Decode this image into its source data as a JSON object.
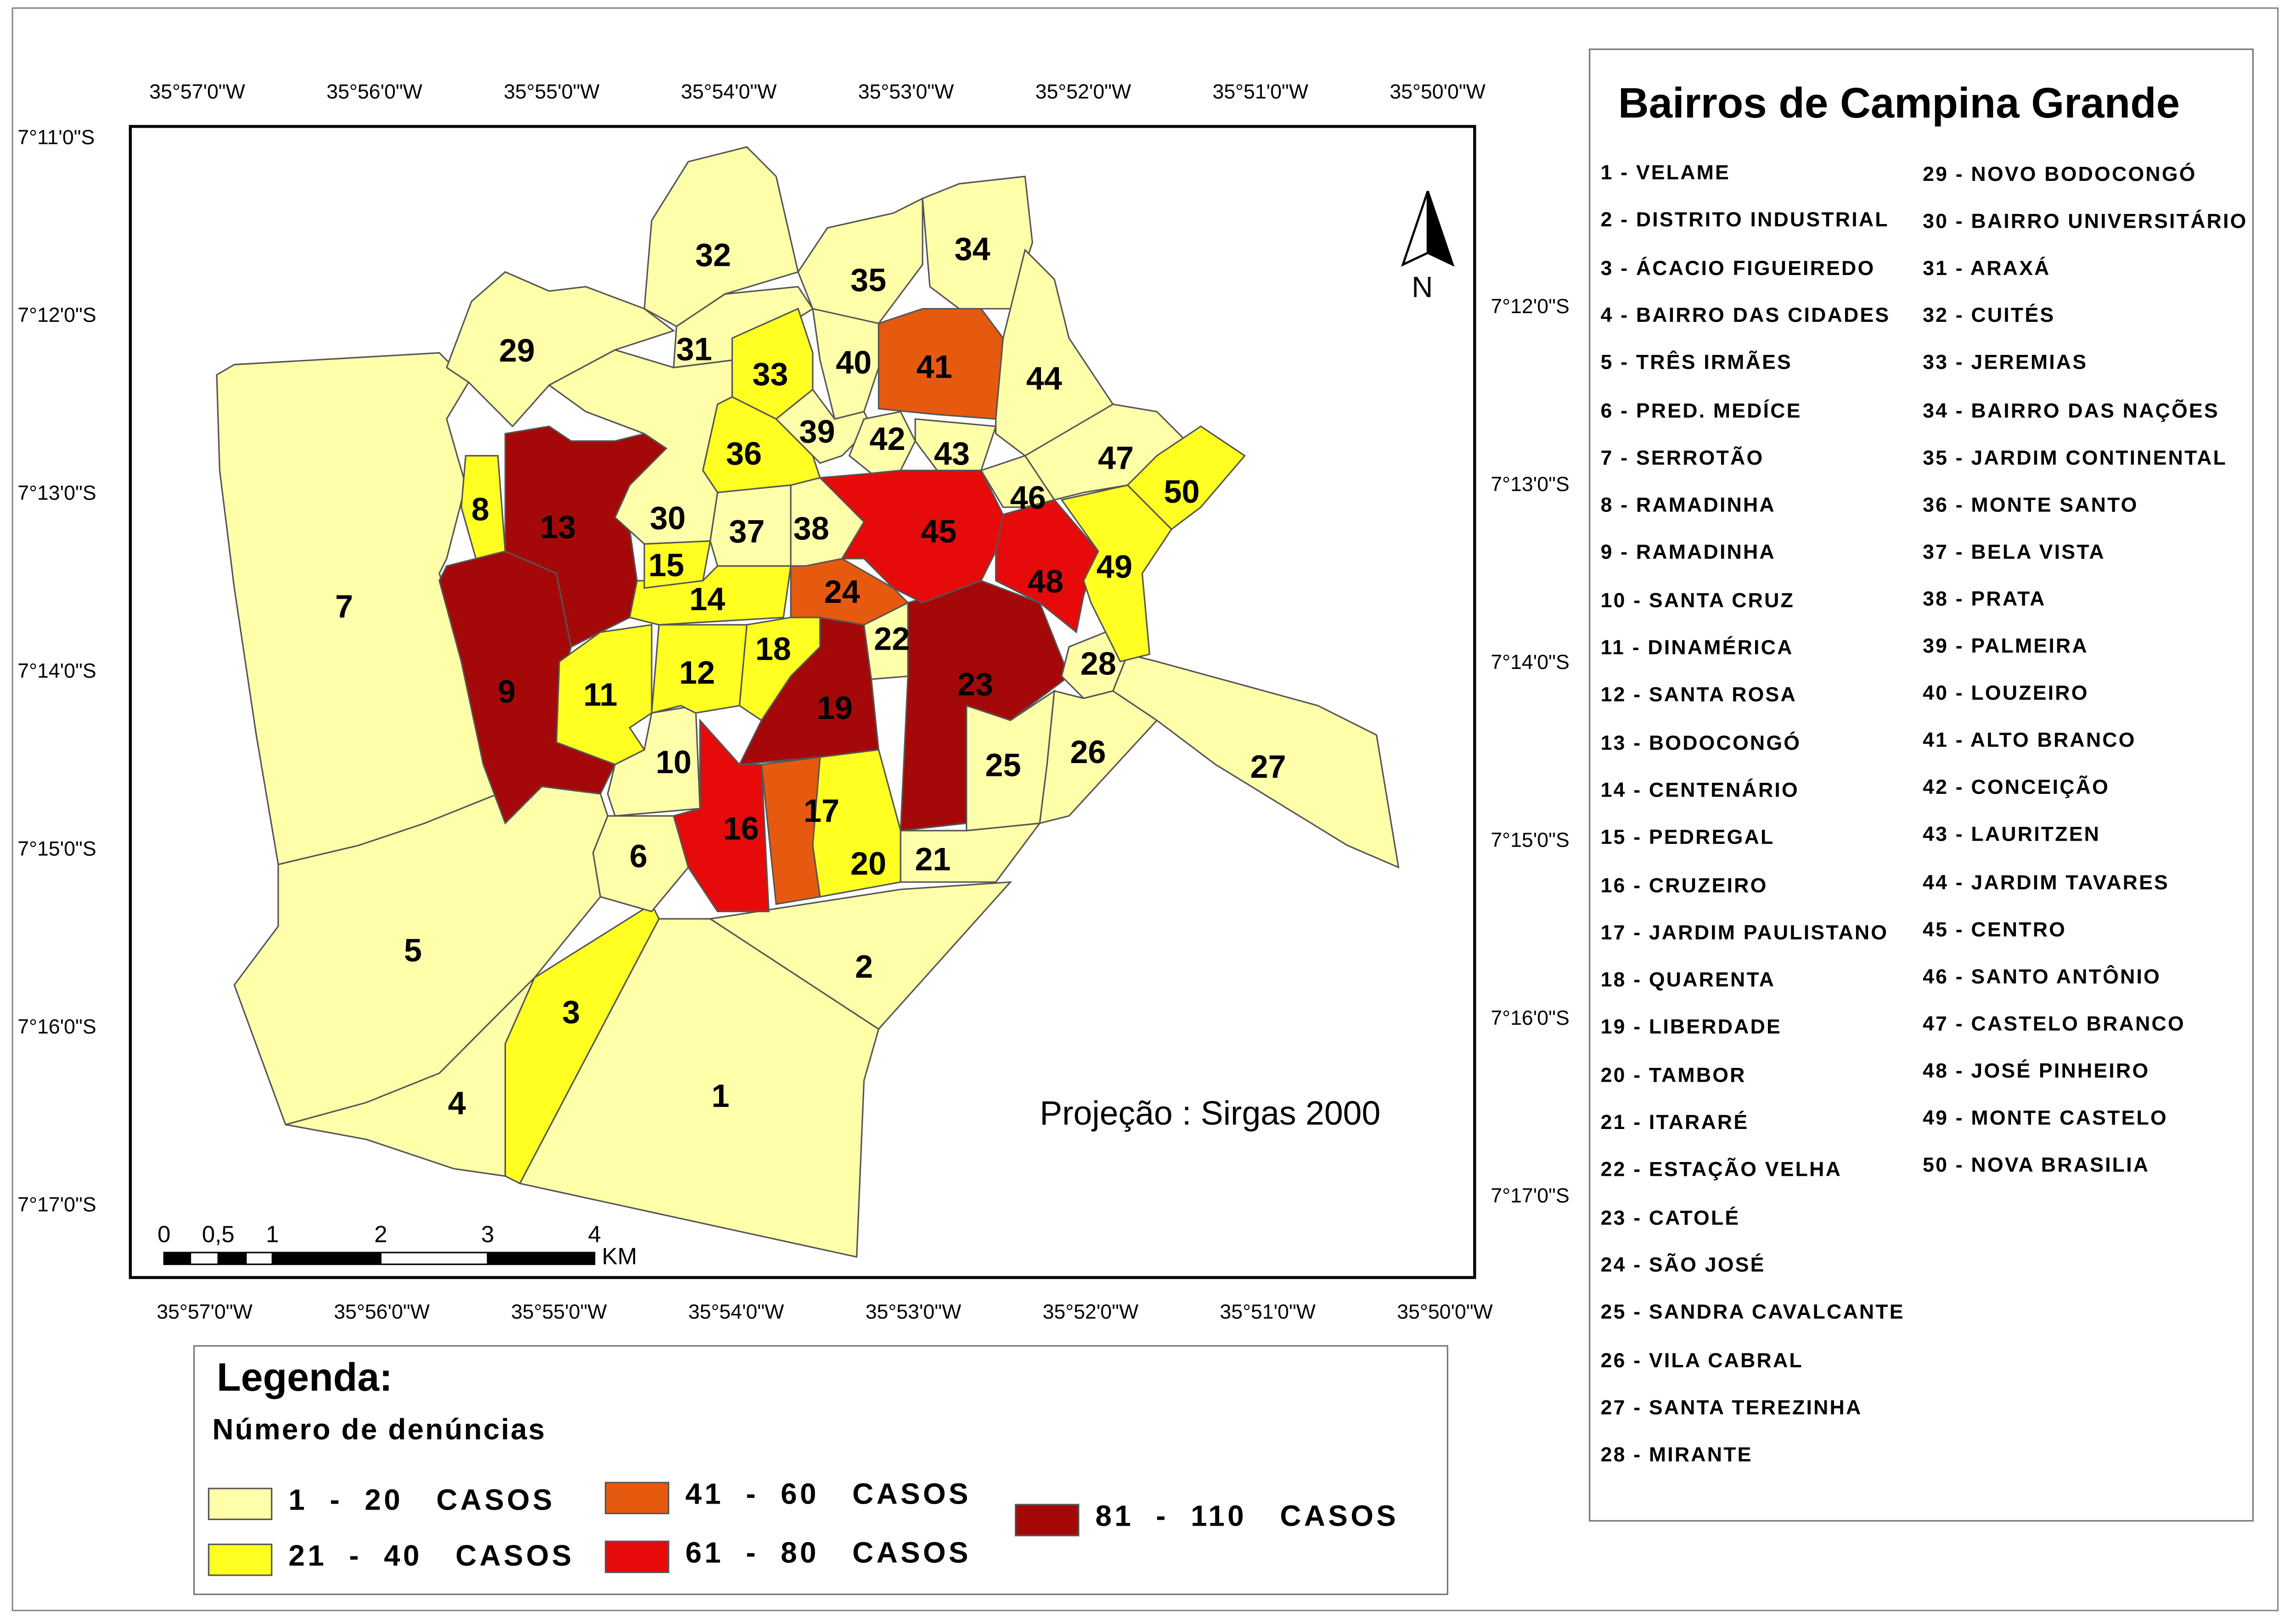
{
  "title": "Bairros de Campina Grande",
  "projection": "Projeção : Sirgas 2000",
  "north_label": "N",
  "lon_labels": [
    "35°57'0\"W",
    "35°56'0\"W",
    "35°55'0\"W",
    "35°54'0\"W",
    "35°53'0\"W",
    "35°52'0\"W",
    "35°51'0\"W",
    "35°50'0\"W"
  ],
  "lat_labels_left": [
    "7°11'0\"S",
    "7°12'0\"S",
    "7°13'0\"S",
    "7°14'0\"S",
    "7°15'0\"S",
    "7°16'0\"S",
    "7°17'0\"S"
  ],
  "lat_labels_right": [
    "7°12'0\"S",
    "7°13'0\"S",
    "7°14'0\"S",
    "7°15'0\"S",
    "7°16'0\"S",
    "7°17'0\"S"
  ],
  "scale_bar": {
    "labels": [
      "0",
      "0,5",
      "1",
      "2",
      "3",
      "4"
    ],
    "unit": "KM"
  },
  "legend": {
    "title": "Legenda:",
    "subtitle": "Número de denúncias",
    "classes": [
      {
        "label": "1  -  20   CASOS",
        "color": "#FFFFAA"
      },
      {
        "label": "21  -  40   CASOS",
        "color": "#FFFF22"
      },
      {
        "label": "41  -  60   CASOS",
        "color": "#E65A10"
      },
      {
        "label": "61  -  80   CASOS",
        "color": "#E60A0A"
      },
      {
        "label": "81  -  110   CASOS",
        "color": "#A50808"
      }
    ]
  },
  "neighborhoods": [
    {
      "id": "1",
      "name": "VELAME",
      "class": 0
    },
    {
      "id": "2",
      "name": "DISTRITO INDUSTRIAL",
      "class": 0
    },
    {
      "id": "3",
      "name": "ÁCACIO FIGUEIREDO",
      "class": 1
    },
    {
      "id": "4",
      "name": "BAIRRO DAS CIDADES",
      "class": 0
    },
    {
      "id": "5",
      "name": "TRÊS IRMÃES",
      "class": 0
    },
    {
      "id": "6",
      "name": "PRED. MEDÍCE",
      "class": 0
    },
    {
      "id": "7",
      "name": "SERROTÃO",
      "class": 0
    },
    {
      "id": "8",
      "name": "RAMADINHA",
      "class": 1
    },
    {
      "id": "9",
      "name": "RAMADINHA",
      "class": 4
    },
    {
      "id": "10",
      "name": "SANTA CRUZ",
      "class": 0
    },
    {
      "id": "11",
      "name": "DINAMÉRICA",
      "class": 1
    },
    {
      "id": "12",
      "name": "SANTA ROSA",
      "class": 1
    },
    {
      "id": "13",
      "name": "BODOCONGÓ",
      "class": 4
    },
    {
      "id": "14",
      "name": "CENTENÁRIO",
      "class": 1
    },
    {
      "id": "15",
      "name": "PEDREGAL",
      "class": 1
    },
    {
      "id": "16",
      "name": "CRUZEIRO",
      "class": 3
    },
    {
      "id": "17",
      "name": "JARDIM PAULISTANO",
      "class": 2
    },
    {
      "id": "18",
      "name": "QUARENTA",
      "class": 1
    },
    {
      "id": "19",
      "name": "LIBERDADE",
      "class": 4
    },
    {
      "id": "20",
      "name": "TAMBOR",
      "class": 1
    },
    {
      "id": "21",
      "name": "ITARARÉ",
      "class": 0
    },
    {
      "id": "22",
      "name": "ESTAÇÃO VELHA",
      "class": 0
    },
    {
      "id": "23",
      "name": "CATOLÉ",
      "class": 4
    },
    {
      "id": "24",
      "name": "SÃO JOSÉ",
      "class": 2
    },
    {
      "id": "25",
      "name": "SANDRA CAVALCANTE",
      "class": 0
    },
    {
      "id": "26",
      "name": "VILA CABRAL",
      "class": 0
    },
    {
      "id": "27",
      "name": "SANTA TEREZINHA",
      "class": 0
    },
    {
      "id": "28",
      "name": "MIRANTE",
      "class": 0
    },
    {
      "id": "29",
      "name": "NOVO BODOCONGÓ",
      "class": 0
    },
    {
      "id": "30",
      "name": "BAIRRO UNIVERSITÁRIO",
      "class": 0
    },
    {
      "id": "31",
      "name": "ARAXÁ",
      "class": 0
    },
    {
      "id": "32",
      "name": "CUITÉS",
      "class": 0
    },
    {
      "id": "33",
      "name": "JEREMIAS",
      "class": 1
    },
    {
      "id": "34",
      "name": "BAIRRO DAS NAÇÕES",
      "class": 0
    },
    {
      "id": "35",
      "name": "JARDIM CONTINENTAL",
      "class": 0
    },
    {
      "id": "36",
      "name": "MONTE SANTO",
      "class": 1
    },
    {
      "id": "37",
      "name": "BELA VISTA",
      "class": 0
    },
    {
      "id": "38",
      "name": "PRATA",
      "class": 0
    },
    {
      "id": "39",
      "name": "PALMEIRA",
      "class": 0
    },
    {
      "id": "40",
      "name": "LOUZEIRO",
      "class": 0
    },
    {
      "id": "41",
      "name": "ALTO BRANCO",
      "class": 2
    },
    {
      "id": "42",
      "name": "CONCEIÇÃO",
      "class": 0
    },
    {
      "id": "43",
      "name": "LAURITZEN",
      "class": 0
    },
    {
      "id": "44",
      "name": "JARDIM TAVARES",
      "class": 0
    },
    {
      "id": "45",
      "name": "CENTRO",
      "class": 3
    },
    {
      "id": "46",
      "name": "SANTO ANTÔNIO",
      "class": 0
    },
    {
      "id": "47",
      "name": "CASTELO BRANCO",
      "class": 0
    },
    {
      "id": "48",
      "name": "JOSÉ PINHEIRO",
      "class": 3
    },
    {
      "id": "49",
      "name": "MONTE CASTELO",
      "class": 1
    },
    {
      "id": "50",
      "name": "NOVA BRASILIA",
      "class": 1
    }
  ]
}
